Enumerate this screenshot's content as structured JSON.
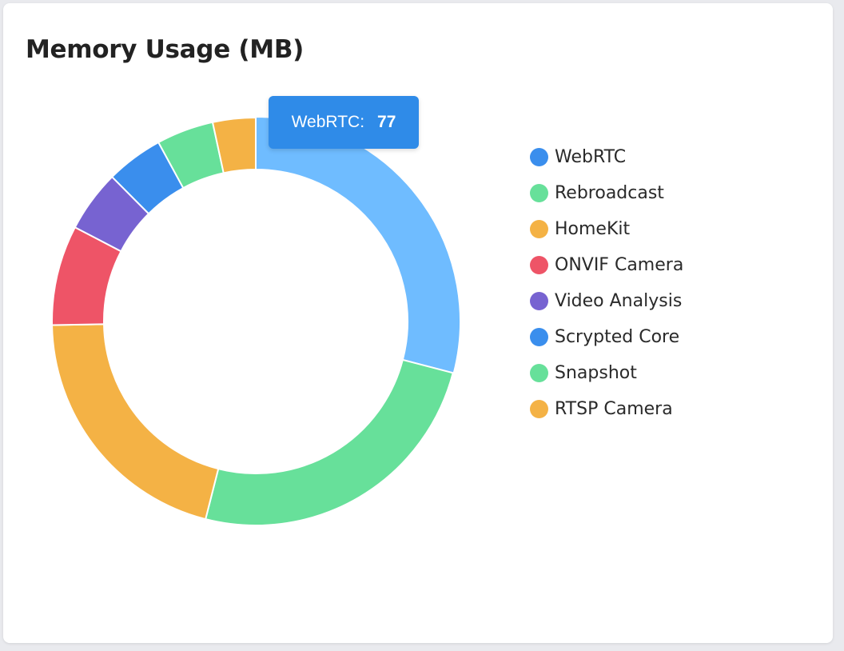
{
  "title": "Memory Usage (MB)",
  "tooltip": {
    "label": "WebRTC:",
    "value": "77"
  },
  "legend": [
    {
      "label": "WebRTC",
      "color": "#3a8eed"
    },
    {
      "label": "Rebroadcast",
      "color": "#67e09a"
    },
    {
      "label": "HomeKit",
      "color": "#f4b245"
    },
    {
      "label": "ONVIF Camera",
      "color": "#ee5467"
    },
    {
      "label": "Video Analysis",
      "color": "#7763d1"
    },
    {
      "label": "Scrypted Core",
      "color": "#3a8eed"
    },
    {
      "label": "Snapshot",
      "color": "#67e09a"
    },
    {
      "label": "RTSP Camera",
      "color": "#f4b245"
    }
  ],
  "chart_data": {
    "type": "pie",
    "title": "Memory Usage (MB)",
    "legend_position": "right",
    "categories": [
      "WebRTC",
      "Rebroadcast",
      "HomeKit",
      "ONVIF Camera",
      "Video Analysis",
      "Scrypted Core",
      "Snapshot",
      "RTSP Camera"
    ],
    "values": [
      77,
      66,
      55,
      21,
      13,
      12,
      12,
      9
    ],
    "colors": [
      "#6fbcff",
      "#67e09a",
      "#f4b245",
      "#ee5467",
      "#7763d1",
      "#3a8eed",
      "#67e09a",
      "#f4b245"
    ],
    "highlighted": "WebRTC"
  }
}
